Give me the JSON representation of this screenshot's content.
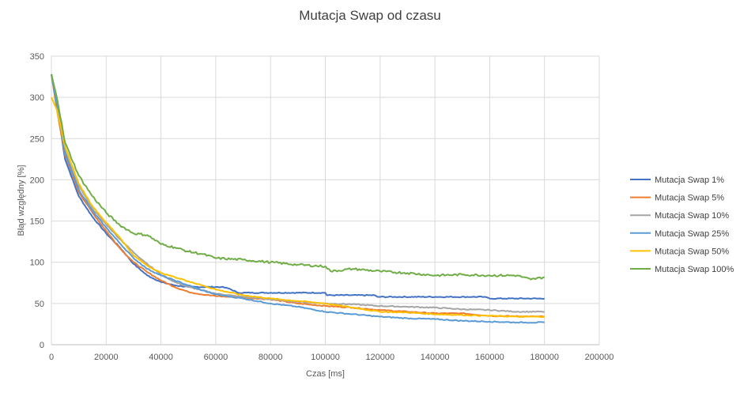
{
  "chart_data": {
    "type": "line",
    "title": "Mutacja Swap od czasu",
    "xlabel": "Czas [ms]",
    "ylabel": "Błąd względny [%]",
    "xlim": [
      0,
      200000
    ],
    "ylim": [
      0,
      350
    ],
    "x_ticks": [
      0,
      20000,
      40000,
      60000,
      80000,
      100000,
      120000,
      140000,
      160000,
      180000,
      200000
    ],
    "y_ticks": [
      0,
      50,
      100,
      150,
      200,
      250,
      300,
      350
    ],
    "grid": true,
    "legend_position": "right",
    "series": [
      {
        "name": "Mutacja Swap 1%",
        "color": "#4472C4",
        "points": [
          [
            0,
            328
          ],
          [
            2000,
            290
          ],
          [
            5000,
            225
          ],
          [
            10000,
            180
          ],
          [
            15000,
            155
          ],
          [
            20000,
            135
          ],
          [
            25000,
            118
          ],
          [
            30000,
            98
          ],
          [
            35000,
            84
          ],
          [
            40000,
            76
          ],
          [
            45000,
            72
          ],
          [
            50000,
            70
          ],
          [
            62000,
            70
          ],
          [
            65000,
            68
          ],
          [
            68000,
            63
          ],
          [
            100000,
            63
          ],
          [
            100500,
            60
          ],
          [
            118000,
            60
          ],
          [
            119000,
            58
          ],
          [
            158000,
            58
          ],
          [
            160000,
            56
          ],
          [
            180000,
            56
          ]
        ]
      },
      {
        "name": "Mutacja Swap 5%",
        "color": "#ED7D31",
        "points": [
          [
            0,
            328
          ],
          [
            2000,
            285
          ],
          [
            5000,
            230
          ],
          [
            10000,
            185
          ],
          [
            15000,
            160
          ],
          [
            20000,
            138
          ],
          [
            25000,
            117
          ],
          [
            30000,
            100
          ],
          [
            35000,
            88
          ],
          [
            40000,
            78
          ],
          [
            45000,
            70
          ],
          [
            50000,
            64
          ],
          [
            55000,
            61
          ],
          [
            60000,
            59
          ],
          [
            70000,
            57
          ],
          [
            80000,
            55
          ],
          [
            90000,
            50
          ],
          [
            100000,
            47
          ],
          [
            110000,
            45
          ],
          [
            120000,
            42
          ],
          [
            130000,
            40
          ],
          [
            140000,
            38
          ],
          [
            150000,
            38
          ],
          [
            160000,
            35
          ],
          [
            180000,
            34
          ]
        ]
      },
      {
        "name": "Mutacja Swap 10%",
        "color": "#A5A5A5",
        "points": [
          [
            0,
            328
          ],
          [
            2000,
            295
          ],
          [
            5000,
            235
          ],
          [
            10000,
            193
          ],
          [
            15000,
            165
          ],
          [
            20000,
            146
          ],
          [
            25000,
            128
          ],
          [
            30000,
            112
          ],
          [
            35000,
            98
          ],
          [
            40000,
            85
          ],
          [
            45000,
            76
          ],
          [
            50000,
            70
          ],
          [
            55000,
            66
          ],
          [
            60000,
            62
          ],
          [
            70000,
            58
          ],
          [
            80000,
            55
          ],
          [
            90000,
            52
          ],
          [
            100000,
            50
          ],
          [
            110000,
            49
          ],
          [
            120000,
            47
          ],
          [
            130000,
            46
          ],
          [
            140000,
            45
          ],
          [
            150000,
            43
          ],
          [
            160000,
            42
          ],
          [
            170000,
            40
          ],
          [
            180000,
            40
          ]
        ]
      },
      {
        "name": "Mutacja Swap 25%",
        "color": "#5B9BD5",
        "points": [
          [
            0,
            328
          ],
          [
            2000,
            290
          ],
          [
            5000,
            232
          ],
          [
            10000,
            188
          ],
          [
            15000,
            162
          ],
          [
            20000,
            142
          ],
          [
            25000,
            123
          ],
          [
            30000,
            105
          ],
          [
            35000,
            92
          ],
          [
            40000,
            84
          ],
          [
            45000,
            78
          ],
          [
            50000,
            72
          ],
          [
            55000,
            66
          ],
          [
            60000,
            61
          ],
          [
            70000,
            56
          ],
          [
            80000,
            50
          ],
          [
            90000,
            46
          ],
          [
            100000,
            40
          ],
          [
            110000,
            37
          ],
          [
            120000,
            34
          ],
          [
            130000,
            32
          ],
          [
            140000,
            31
          ],
          [
            150000,
            29
          ],
          [
            160000,
            28
          ],
          [
            170000,
            27
          ],
          [
            180000,
            27
          ]
        ]
      },
      {
        "name": "Mutacja Swap 50%",
        "color": "#FFC000",
        "points": [
          [
            0,
            300
          ],
          [
            2000,
            285
          ],
          [
            5000,
            240
          ],
          [
            10000,
            195
          ],
          [
            15000,
            168
          ],
          [
            20000,
            148
          ],
          [
            25000,
            130
          ],
          [
            30000,
            108
          ],
          [
            35000,
            96
          ],
          [
            40000,
            87
          ],
          [
            45000,
            82
          ],
          [
            50000,
            77
          ],
          [
            55000,
            72
          ],
          [
            60000,
            67
          ],
          [
            70000,
            60
          ],
          [
            80000,
            56
          ],
          [
            90000,
            53
          ],
          [
            100000,
            50
          ],
          [
            110000,
            45
          ],
          [
            120000,
            40
          ],
          [
            130000,
            39
          ],
          [
            140000,
            37
          ],
          [
            150000,
            36
          ],
          [
            160000,
            35
          ],
          [
            170000,
            34
          ],
          [
            180000,
            34
          ]
        ]
      },
      {
        "name": "Mutacja Swap 100%",
        "color": "#70AD47",
        "points": [
          [
            0,
            328
          ],
          [
            2000,
            300
          ],
          [
            5000,
            245
          ],
          [
            10000,
            205
          ],
          [
            15000,
            180
          ],
          [
            20000,
            160
          ],
          [
            25000,
            145
          ],
          [
            30000,
            135
          ],
          [
            35000,
            133
          ],
          [
            40000,
            122
          ],
          [
            45000,
            118
          ],
          [
            50000,
            113
          ],
          [
            55000,
            110
          ],
          [
            60000,
            105
          ],
          [
            70000,
            103
          ],
          [
            80000,
            100
          ],
          [
            90000,
            97
          ],
          [
            100000,
            95
          ],
          [
            102000,
            89
          ],
          [
            110000,
            92
          ],
          [
            120000,
            89
          ],
          [
            130000,
            87
          ],
          [
            140000,
            84
          ],
          [
            150000,
            85
          ],
          [
            160000,
            84
          ],
          [
            170000,
            84
          ],
          [
            175000,
            79
          ],
          [
            180000,
            82
          ]
        ]
      }
    ]
  }
}
